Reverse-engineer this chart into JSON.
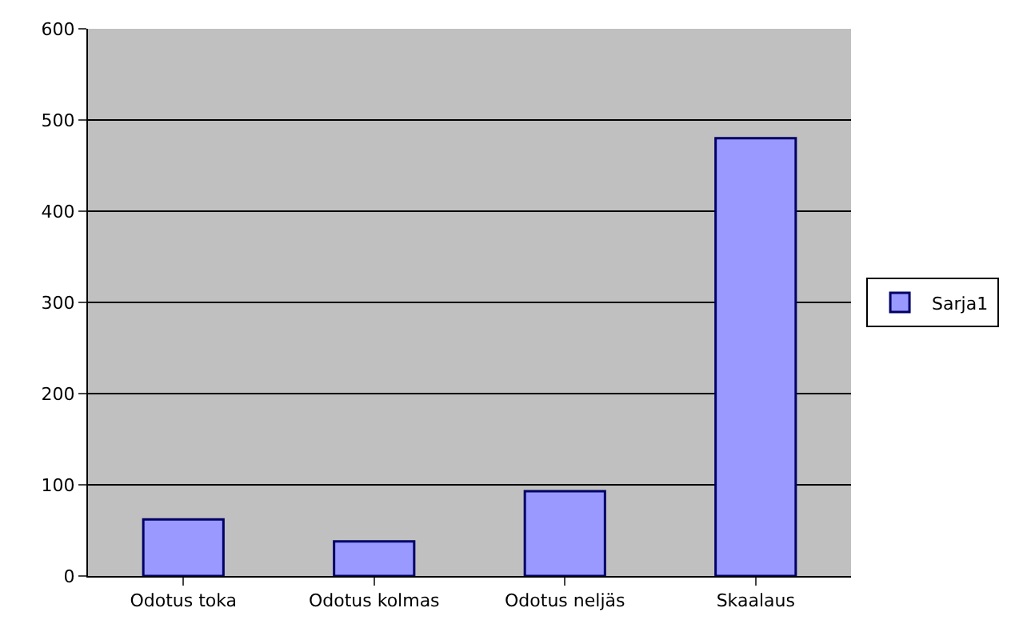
{
  "chart_data": {
    "type": "bar",
    "categories": [
      "Odotus toka",
      "Odotus kolmas",
      "Odotus neljäs",
      "Skaalaus"
    ],
    "series": [
      {
        "name": "Sarja1",
        "color": "#9999ff",
        "values": [
          62,
          38,
          93,
          480
        ]
      }
    ],
    "ylim": [
      0,
      600
    ],
    "yticks": [
      0,
      100,
      200,
      300,
      400,
      500,
      600
    ],
    "grid": "y",
    "legend": "right"
  }
}
